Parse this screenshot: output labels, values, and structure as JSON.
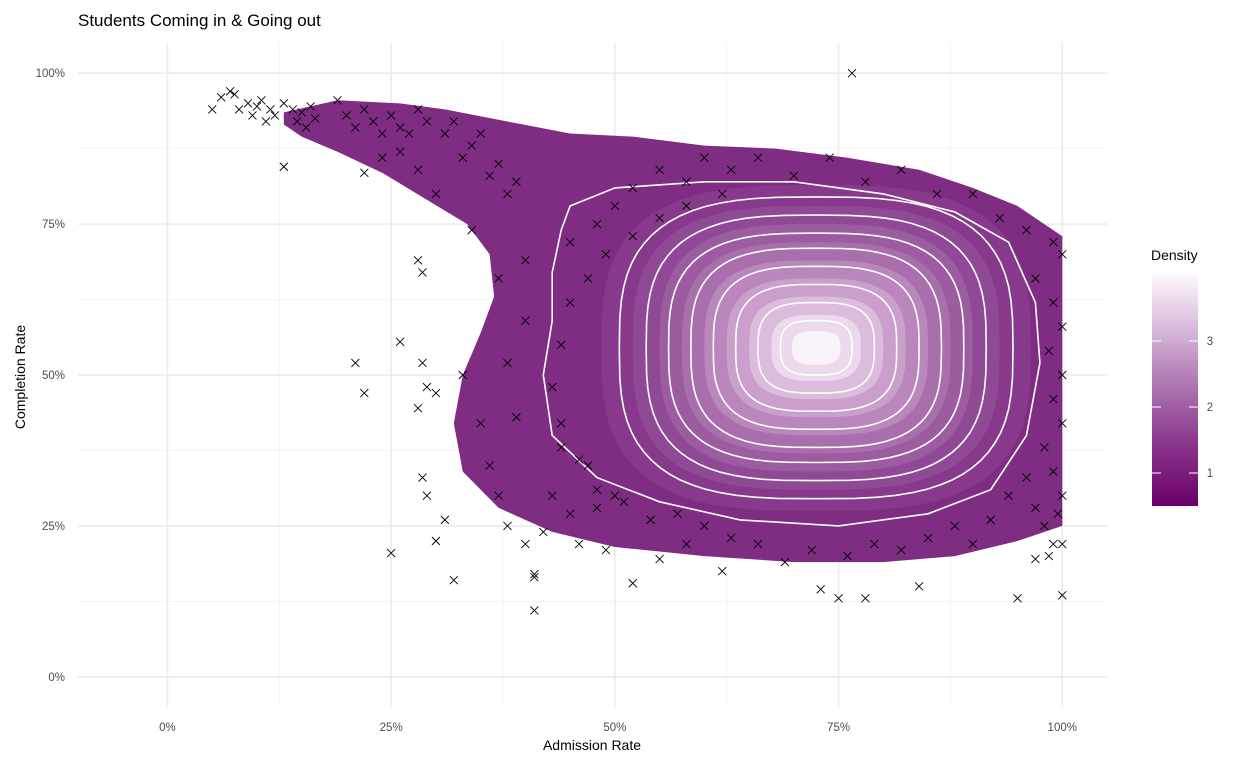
{
  "chart_data": {
    "type": "scatter",
    "title": "Students Coming in & Going out",
    "xlabel": "Admission Rate",
    "ylabel": "Completion Rate",
    "xlim": [
      -0.1,
      1.05
    ],
    "ylim": [
      -0.05,
      1.05
    ],
    "x_ticks": [
      {
        "value": 0,
        "label": "0%"
      },
      {
        "value": 0.25,
        "label": "25%"
      },
      {
        "value": 0.5,
        "label": "50%"
      },
      {
        "value": 0.75,
        "label": "75%"
      },
      {
        "value": 1,
        "label": "100%"
      }
    ],
    "y_ticks": [
      {
        "value": 0,
        "label": "0%"
      },
      {
        "value": 0.25,
        "label": "25%"
      },
      {
        "value": 0.5,
        "label": "50%"
      },
      {
        "value": 0.75,
        "label": "75%"
      },
      {
        "value": 1,
        "label": "100%"
      }
    ],
    "grid": true,
    "marker": "x",
    "density_overlay": "filled 2D density with white contour lines",
    "density_peak": {
      "x": 0.72,
      "y": 0.55
    },
    "legend": {
      "title": "Density",
      "position": "right",
      "ticks": [
        {
          "value": 1,
          "label": "1"
        },
        {
          "value": 2,
          "label": "2"
        },
        {
          "value": 3,
          "label": "3"
        }
      ],
      "range": [
        0.5,
        4.0
      ],
      "colors": {
        "low": "#6a006a",
        "mid": "#9c5c9e",
        "high": "#fdf6fb"
      }
    },
    "points": [
      [
        0.05,
        0.94
      ],
      [
        0.06,
        0.96
      ],
      [
        0.07,
        0.97
      ],
      [
        0.075,
        0.965
      ],
      [
        0.08,
        0.94
      ],
      [
        0.09,
        0.95
      ],
      [
        0.095,
        0.93
      ],
      [
        0.1,
        0.945
      ],
      [
        0.105,
        0.955
      ],
      [
        0.11,
        0.92
      ],
      [
        0.115,
        0.94
      ],
      [
        0.12,
        0.93
      ],
      [
        0.13,
        0.95
      ],
      [
        0.14,
        0.94
      ],
      [
        0.145,
        0.92
      ],
      [
        0.15,
        0.935
      ],
      [
        0.155,
        0.91
      ],
      [
        0.16,
        0.945
      ],
      [
        0.165,
        0.925
      ],
      [
        0.13,
        0.845
      ],
      [
        0.19,
        0.955
      ],
      [
        0.2,
        0.93
      ],
      [
        0.21,
        0.91
      ],
      [
        0.22,
        0.94
      ],
      [
        0.23,
        0.92
      ],
      [
        0.24,
        0.9
      ],
      [
        0.25,
        0.93
      ],
      [
        0.26,
        0.91
      ],
      [
        0.27,
        0.9
      ],
      [
        0.28,
        0.94
      ],
      [
        0.29,
        0.92
      ],
      [
        0.22,
        0.835
      ],
      [
        0.24,
        0.86
      ],
      [
        0.26,
        0.87
      ],
      [
        0.28,
        0.84
      ],
      [
        0.3,
        0.8
      ],
      [
        0.31,
        0.9
      ],
      [
        0.32,
        0.92
      ],
      [
        0.33,
        0.86
      ],
      [
        0.34,
        0.88
      ],
      [
        0.35,
        0.9
      ],
      [
        0.36,
        0.83
      ],
      [
        0.37,
        0.85
      ],
      [
        0.38,
        0.8
      ],
      [
        0.39,
        0.82
      ],
      [
        0.34,
        0.74
      ],
      [
        0.37,
        0.66
      ],
      [
        0.4,
        0.69
      ],
      [
        0.4,
        0.59
      ],
      [
        0.38,
        0.52
      ],
      [
        0.21,
        0.52
      ],
      [
        0.22,
        0.47
      ],
      [
        0.26,
        0.555
      ],
      [
        0.28,
        0.69
      ],
      [
        0.285,
        0.67
      ],
      [
        0.29,
        0.48
      ],
      [
        0.3,
        0.47
      ],
      [
        0.28,
        0.445
      ],
      [
        0.285,
        0.52
      ],
      [
        0.285,
        0.33
      ],
      [
        0.29,
        0.3
      ],
      [
        0.3,
        0.225
      ],
      [
        0.31,
        0.26
      ],
      [
        0.32,
        0.16
      ],
      [
        0.25,
        0.205
      ],
      [
        0.33,
        0.5
      ],
      [
        0.35,
        0.42
      ],
      [
        0.36,
        0.35
      ],
      [
        0.37,
        0.3
      ],
      [
        0.38,
        0.25
      ],
      [
        0.39,
        0.43
      ],
      [
        0.4,
        0.22
      ],
      [
        0.41,
        0.17
      ],
      [
        0.41,
        0.165
      ],
      [
        0.41,
        0.11
      ],
      [
        0.42,
        0.24
      ],
      [
        0.43,
        0.3
      ],
      [
        0.44,
        0.38
      ],
      [
        0.45,
        0.27
      ],
      [
        0.46,
        0.22
      ],
      [
        0.47,
        0.35
      ],
      [
        0.48,
        0.28
      ],
      [
        0.49,
        0.21
      ],
      [
        0.5,
        0.3
      ],
      [
        0.52,
        0.155
      ],
      [
        0.55,
        0.195
      ],
      [
        0.58,
        0.22
      ],
      [
        0.62,
        0.175
      ],
      [
        0.73,
        0.145
      ],
      [
        0.75,
        0.13
      ],
      [
        0.78,
        0.13
      ],
      [
        0.84,
        0.15
      ],
      [
        0.95,
        0.13
      ],
      [
        1.0,
        0.135
      ],
      [
        0.97,
        0.195
      ],
      [
        0.985,
        0.2
      ],
      [
        0.99,
        0.22
      ],
      [
        1.0,
        0.22
      ],
      [
        0.98,
        0.25
      ],
      [
        0.995,
        0.27
      ],
      [
        0.765,
        1.0
      ],
      [
        0.45,
        0.72
      ],
      [
        0.48,
        0.75
      ],
      [
        0.5,
        0.78
      ],
      [
        0.52,
        0.81
      ],
      [
        0.55,
        0.84
      ],
      [
        0.58,
        0.82
      ],
      [
        0.6,
        0.86
      ],
      [
        0.63,
        0.84
      ],
      [
        0.66,
        0.86
      ],
      [
        0.7,
        0.83
      ],
      [
        0.74,
        0.86
      ],
      [
        0.78,
        0.82
      ],
      [
        0.82,
        0.84
      ],
      [
        0.86,
        0.8
      ],
      [
        0.9,
        0.8
      ],
      [
        0.93,
        0.76
      ],
      [
        0.96,
        0.74
      ],
      [
        0.99,
        0.72
      ],
      [
        1.0,
        0.7
      ],
      [
        0.97,
        0.66
      ],
      [
        0.99,
        0.62
      ],
      [
        1.0,
        0.58
      ],
      [
        0.985,
        0.54
      ],
      [
        1.0,
        0.5
      ],
      [
        0.99,
        0.46
      ],
      [
        1.0,
        0.42
      ],
      [
        0.98,
        0.38
      ],
      [
        0.99,
        0.34
      ],
      [
        1.0,
        0.3
      ],
      [
        0.97,
        0.28
      ],
      [
        0.96,
        0.33
      ],
      [
        0.94,
        0.3
      ],
      [
        0.92,
        0.26
      ],
      [
        0.9,
        0.22
      ],
      [
        0.88,
        0.25
      ],
      [
        0.85,
        0.23
      ],
      [
        0.82,
        0.21
      ],
      [
        0.79,
        0.22
      ],
      [
        0.76,
        0.2
      ],
      [
        0.72,
        0.21
      ],
      [
        0.69,
        0.19
      ],
      [
        0.66,
        0.22
      ],
      [
        0.63,
        0.23
      ],
      [
        0.6,
        0.25
      ],
      [
        0.57,
        0.27
      ],
      [
        0.54,
        0.26
      ],
      [
        0.51,
        0.29
      ],
      [
        0.48,
        0.31
      ],
      [
        0.46,
        0.36
      ],
      [
        0.44,
        0.42
      ],
      [
        0.43,
        0.48
      ],
      [
        0.44,
        0.55
      ],
      [
        0.45,
        0.62
      ],
      [
        0.47,
        0.66
      ],
      [
        0.49,
        0.7
      ],
      [
        0.52,
        0.73
      ],
      [
        0.55,
        0.76
      ],
      [
        0.58,
        0.78
      ],
      [
        0.62,
        0.8
      ]
    ]
  }
}
